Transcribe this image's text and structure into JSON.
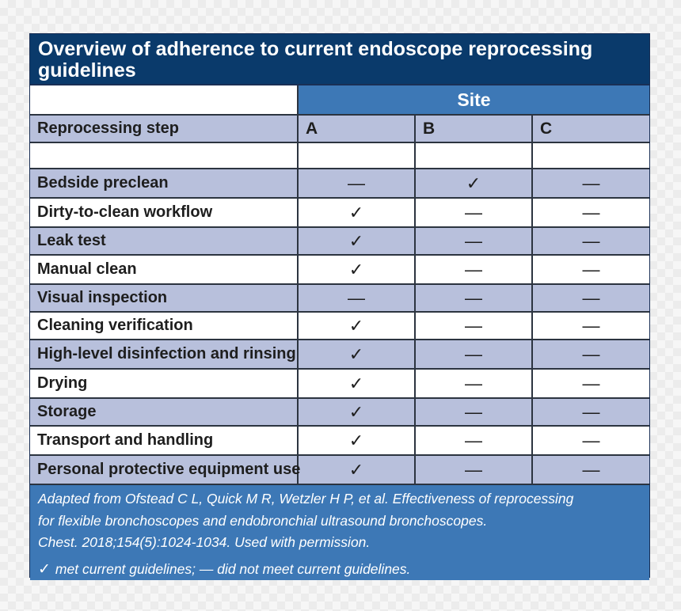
{
  "title": "Overview of adherence to current endoscope reprocessing guidelines",
  "site_header": "Site",
  "step_header": "Reprocessing step",
  "sites": [
    "A",
    "B",
    "C"
  ],
  "symbols": {
    "met": "✓",
    "not_met": "—"
  },
  "rows": [
    {
      "step": "Bedside preclean",
      "A": "—",
      "B": "✓",
      "C": "—"
    },
    {
      "step": "Dirty-to-clean workflow",
      "A": "✓",
      "B": "—",
      "C": "—"
    },
    {
      "step": "Leak test",
      "A": "✓",
      "B": "—",
      "C": "—"
    },
    {
      "step": "Manual clean",
      "A": "✓",
      "B": "—",
      "C": "—"
    },
    {
      "step": "Visual inspection",
      "A": "—",
      "B": "—",
      "C": "—"
    },
    {
      "step": "Cleaning verification",
      "A": "✓",
      "B": "—",
      "C": "—"
    },
    {
      "step": "High-level disinfection and rinsing",
      "A": "✓",
      "B": "—",
      "C": "—"
    },
    {
      "step": "Drying",
      "A": "✓",
      "B": "—",
      "C": "—"
    },
    {
      "step": "Storage",
      "A": "✓",
      "B": "—",
      "C": "—"
    },
    {
      "step": "Transport and handling",
      "A": "✓",
      "B": "—",
      "C": "—"
    },
    {
      "step": "Personal protective equipment use",
      "A": "✓",
      "B": "—",
      "C": "—"
    }
  ],
  "footnote": {
    "lines": [
      "Adapted from Ofstead C L, Quick M R, Wetzler H P, et al. Effectiveness of reprocessing",
      "for flexible bronchoscopes and endobronchial ultrasound bronchoscopes.",
      "Chest. 2018;154(5):1024-1034. Used with permission."
    ],
    "legend_met": "met current guidelines;",
    "legend_not_met": "did not meet current guidelines."
  },
  "colors": {
    "title_bg": "#0a3a6b",
    "site_bg": "#3d78b6",
    "row_alt_bg": "#b8c0dc",
    "border": "#2c3440"
  }
}
